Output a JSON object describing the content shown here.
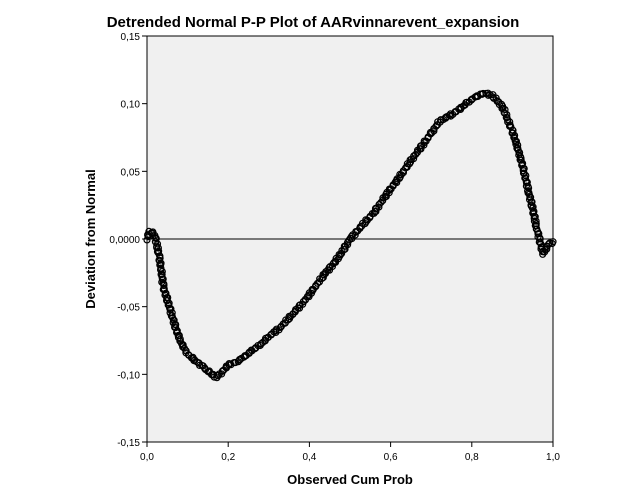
{
  "chart_data": {
    "type": "scatter",
    "title": "Detrended Normal P-P Plot of AARvinnarevent_expansion",
    "xlabel": "Observed Cum Prob",
    "ylabel": "Deviation from Normal",
    "xlim": [
      0.0,
      1.0
    ],
    "ylim": [
      -0.15,
      0.15
    ],
    "x_ticks": [
      "0,0",
      "0,2",
      "0,4",
      "0,6",
      "0,8",
      "1,0"
    ],
    "y_ticks": [
      "-0,15",
      "-0,10",
      "-0,05",
      "0,0000",
      "0,05",
      "0,10",
      "0,15"
    ],
    "reference_line_y": 0.0,
    "grid": false,
    "plot_background": "#f0f0f0",
    "marker": "open-circle",
    "marker_color": "#000000",
    "curve_points": [
      [
        0.0,
        0.0
      ],
      [
        0.005,
        0.005
      ],
      [
        0.01,
        0.005
      ],
      [
        0.015,
        0.004
      ],
      [
        0.02,
        0.001
      ],
      [
        0.025,
        -0.005
      ],
      [
        0.03,
        -0.013
      ],
      [
        0.035,
        -0.022
      ],
      [
        0.04,
        -0.035
      ],
      [
        0.05,
        -0.045
      ],
      [
        0.06,
        -0.055
      ],
      [
        0.07,
        -0.065
      ],
      [
        0.08,
        -0.074
      ],
      [
        0.09,
        -0.08
      ],
      [
        0.1,
        -0.085
      ],
      [
        0.12,
        -0.09
      ],
      [
        0.14,
        -0.095
      ],
      [
        0.155,
        -0.099
      ],
      [
        0.17,
        -0.102
      ],
      [
        0.18,
        -0.1
      ],
      [
        0.2,
        -0.093
      ],
      [
        0.22,
        -0.091
      ],
      [
        0.24,
        -0.087
      ],
      [
        0.26,
        -0.082
      ],
      [
        0.28,
        -0.078
      ],
      [
        0.3,
        -0.072
      ],
      [
        0.33,
        -0.065
      ],
      [
        0.36,
        -0.055
      ],
      [
        0.39,
        -0.045
      ],
      [
        0.42,
        -0.033
      ],
      [
        0.44,
        -0.025
      ],
      [
        0.46,
        -0.018
      ],
      [
        0.48,
        -0.01
      ],
      [
        0.5,
        0.0
      ],
      [
        0.53,
        0.01
      ],
      [
        0.56,
        0.02
      ],
      [
        0.59,
        0.033
      ],
      [
        0.62,
        0.045
      ],
      [
        0.65,
        0.058
      ],
      [
        0.68,
        0.07
      ],
      [
        0.7,
        0.078
      ],
      [
        0.72,
        0.087
      ],
      [
        0.75,
        0.092
      ],
      [
        0.77,
        0.096
      ],
      [
        0.79,
        0.101
      ],
      [
        0.81,
        0.105
      ],
      [
        0.83,
        0.108
      ],
      [
        0.85,
        0.106
      ],
      [
        0.87,
        0.1
      ],
      [
        0.88,
        0.095
      ],
      [
        0.89,
        0.087
      ],
      [
        0.9,
        0.08
      ],
      [
        0.91,
        0.07
      ],
      [
        0.92,
        0.06
      ],
      [
        0.93,
        0.048
      ],
      [
        0.94,
        0.035
      ],
      [
        0.95,
        0.022
      ],
      [
        0.96,
        0.008
      ],
      [
        0.97,
        -0.004
      ],
      [
        0.975,
        -0.011
      ],
      [
        0.98,
        -0.008
      ],
      [
        0.99,
        -0.004
      ],
      [
        1.0,
        -0.002
      ]
    ]
  }
}
